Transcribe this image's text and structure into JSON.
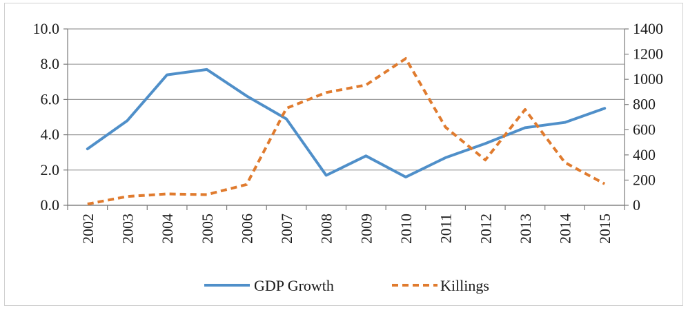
{
  "chart_data": {
    "type": "line",
    "title": "",
    "xlabel": "",
    "ylabel": "",
    "categories": [
      "2002",
      "2003",
      "2004",
      "2005",
      "2006",
      "2007",
      "2008",
      "2009",
      "2010",
      "2011",
      "2012",
      "2013",
      "2014",
      "2015"
    ],
    "y_left": {
      "min": 0,
      "max": 10,
      "ticks": [
        "0.0",
        "2.0",
        "4.0",
        "6.0",
        "8.0",
        "10.0"
      ]
    },
    "y_right": {
      "min": 0,
      "max": 1400,
      "ticks": [
        "0",
        "200",
        "400",
        "600",
        "800",
        "1000",
        "1200",
        "1400"
      ]
    },
    "grid": true,
    "legend_position": "bottom",
    "series": [
      {
        "name": "GDP Growth",
        "axis": "left",
        "style": "solid",
        "color": "#4f8fc9",
        "values": [
          3.2,
          4.8,
          7.4,
          7.7,
          6.2,
          4.9,
          1.7,
          2.8,
          1.6,
          2.7,
          3.5,
          4.4,
          4.7,
          5.5
        ]
      },
      {
        "name": "Killings",
        "axis": "right",
        "style": "dashed",
        "color": "#e07b2e",
        "values": [
          10,
          70,
          90,
          85,
          165,
          770,
          895,
          955,
          1165,
          620,
          360,
          760,
          340,
          170
        ]
      }
    ]
  }
}
